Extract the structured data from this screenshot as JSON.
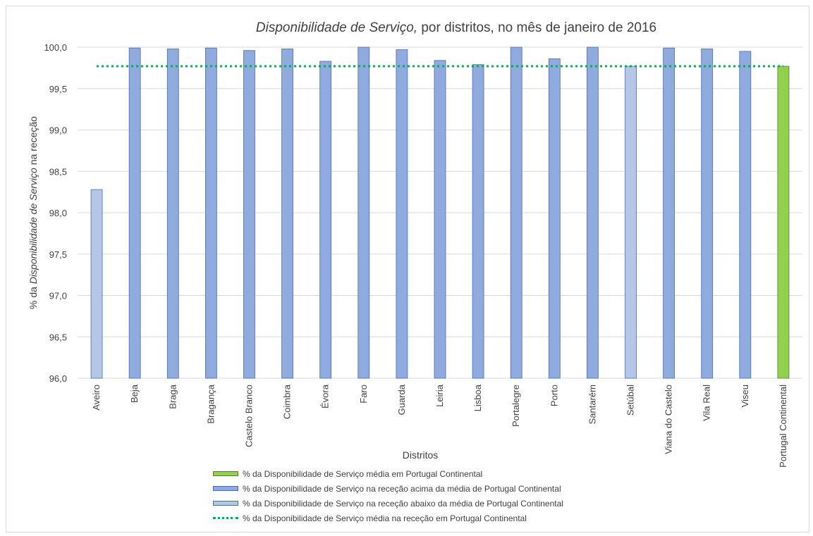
{
  "chart_data": {
    "type": "bar",
    "title_italic": "Disponibilidade de Serviço,",
    "title_rest": " por distritos, no mês de janeiro de 2016",
    "xlabel": "Distritos",
    "ylabel_pre": "% da ",
    "ylabel_italic": "Disponibilidade de Serviço",
    "ylabel_post": " na receção",
    "ylim": [
      96.0,
      100.0
    ],
    "yticks": [
      "96,0",
      "96,5",
      "97,0",
      "97,5",
      "98,0",
      "98,5",
      "99,0",
      "99,5",
      "100,0"
    ],
    "grid": true,
    "categories": [
      "Aveiro",
      "Beja",
      "Braga",
      "Bragança",
      "Castelo Branco",
      "Coimbra",
      "Évora",
      "Faro",
      "Guarda",
      "Leiria",
      "Lisboa",
      "Portalegre",
      "Porto",
      "Santarém",
      "Setúbal",
      "Viana do Castelo",
      "Vila Real",
      "Viseu",
      "Portugal Continental"
    ],
    "values": [
      98.28,
      99.99,
      99.98,
      99.99,
      99.96,
      99.98,
      99.83,
      100.0,
      99.97,
      99.84,
      99.79,
      100.0,
      99.86,
      100.0,
      99.77,
      99.99,
      99.98,
      99.95,
      99.77
    ],
    "bar_groups": [
      "below",
      "above",
      "above",
      "above",
      "above",
      "above",
      "above",
      "above",
      "above",
      "above",
      "above",
      "above",
      "above",
      "above",
      "below",
      "above",
      "above",
      "above",
      "average"
    ],
    "average_line": 99.77,
    "colors": {
      "above": "#8faadc",
      "below": "#b4c7e7",
      "average": "#92d050",
      "bar_border": "#4a6db3",
      "average_border": "#548235",
      "average_line": "#00b050",
      "grid": "#d9d9d9"
    },
    "legend": [
      {
        "key": "average",
        "label": "% da Disponibilidade de Serviço média em Portugal Continental"
      },
      {
        "key": "above",
        "label": "% da Disponibilidade de Serviço na receção acima da média de Portugal Continental"
      },
      {
        "key": "below",
        "label": "% da Disponibilidade de Serviço na receção abaixo da média de Portugal Continental"
      },
      {
        "key": "line",
        "label": "% da Disponibilidade de Serviço média na receção em Portugal Continental"
      }
    ]
  }
}
